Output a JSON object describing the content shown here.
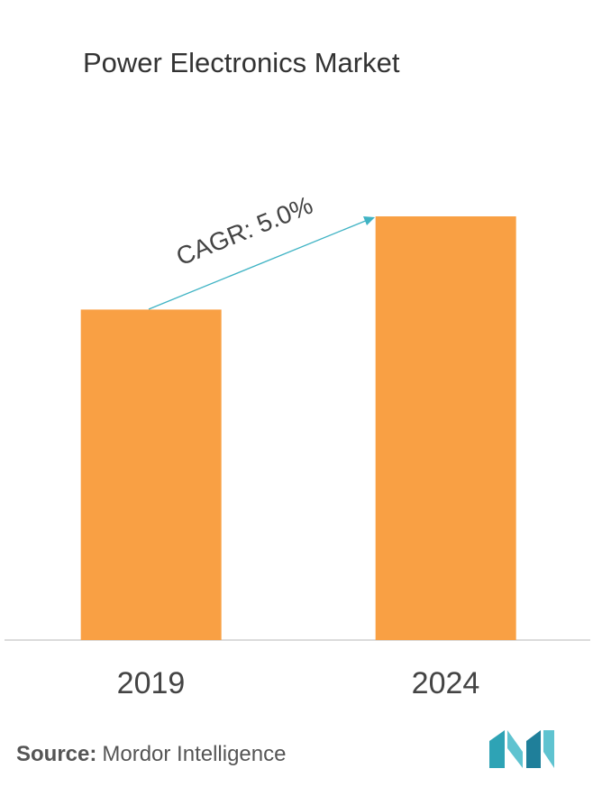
{
  "chart_data": {
    "type": "bar",
    "title": "Power Electronics Market",
    "categories": [
      "2019",
      "2024"
    ],
    "values": [
      78,
      100
    ],
    "color": "#f9a044",
    "ylim": [
      0,
      100
    ],
    "annotation": "CAGR: 5.0%",
    "source_label": "Source:",
    "source": "Mordor Intelligence"
  }
}
